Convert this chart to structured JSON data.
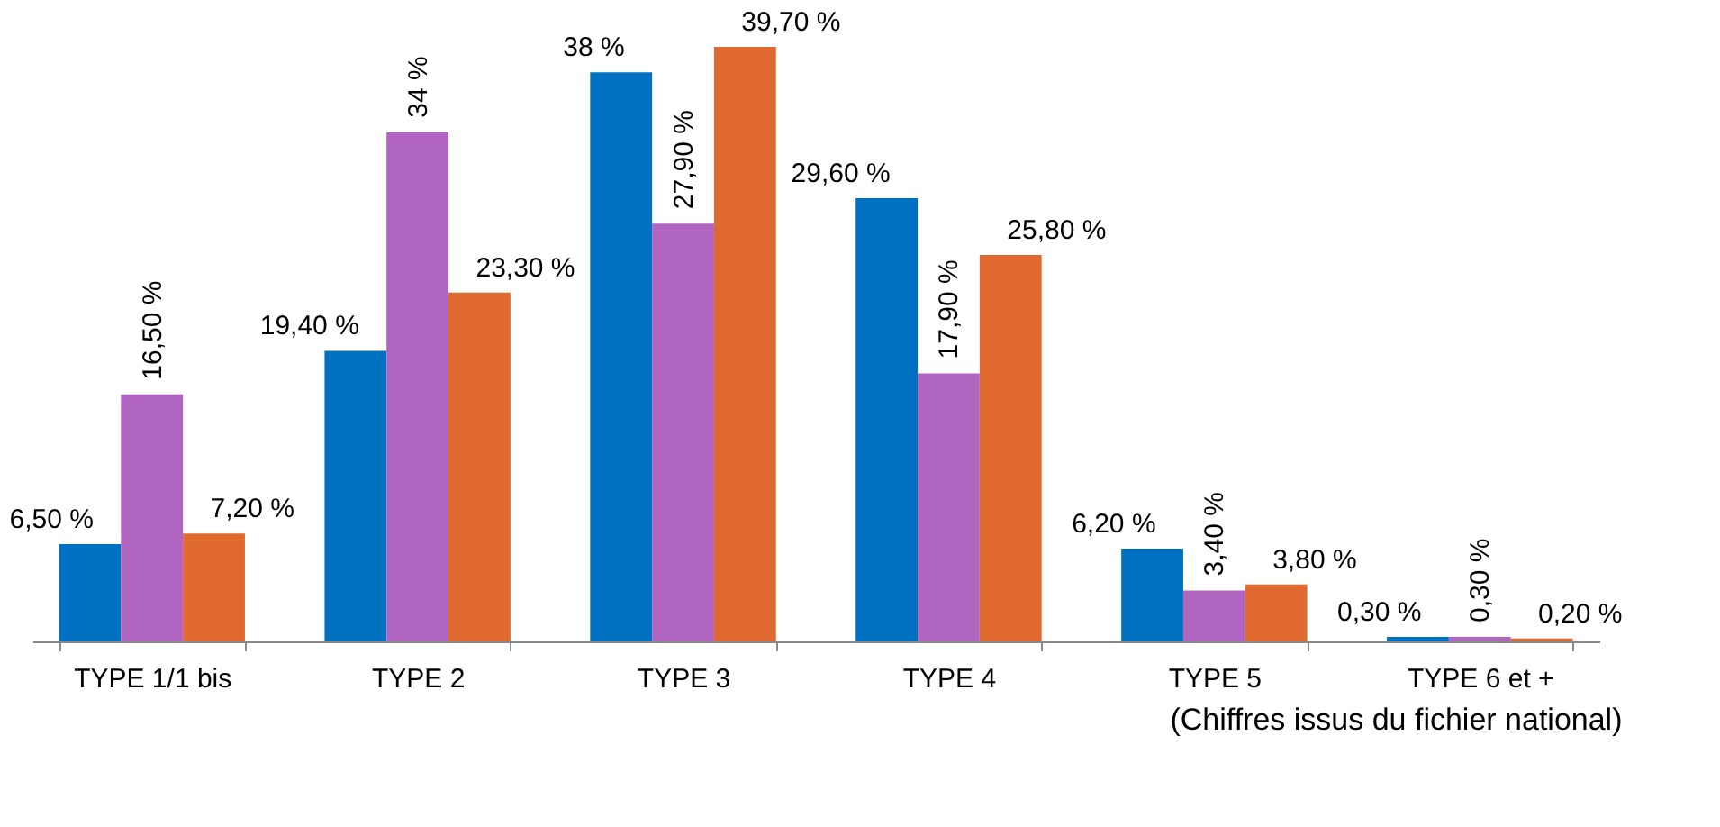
{
  "chart_data": {
    "type": "bar",
    "categories": [
      "TYPE 1/1 bis",
      "TYPE 2",
      "TYPE 3",
      "TYPE 4",
      "TYPE 5",
      "TYPE 6 et +"
    ],
    "series": [
      {
        "color": "#0070c0",
        "values": [
          6.5,
          19.4,
          38,
          29.6,
          6.2,
          0.3
        ],
        "value_labels": [
          "6,50 %",
          "19,40 %",
          "38 %",
          "29,60 %",
          "6,20 %",
          "0,30 %"
        ]
      },
      {
        "color": "#b065c0",
        "values": [
          16.5,
          34,
          27.9,
          17.9,
          3.4,
          0.3
        ],
        "value_labels": [
          "16,50 %",
          "34 %",
          "27,90 %",
          "17,90 %",
          "3,40 %",
          "0,30 %"
        ]
      },
      {
        "color": "#e0692f",
        "values": [
          7.2,
          23.3,
          39.7,
          25.8,
          3.8,
          0.2
        ],
        "value_labels": [
          "7,20 %",
          "23,30 %",
          "39,70 %",
          "25,80 %",
          "3,80 %",
          "0,20 %"
        ]
      }
    ],
    "annotations": [
      "(Chiffres issus du fichier national)"
    ],
    "grid": false,
    "legend": false
  }
}
